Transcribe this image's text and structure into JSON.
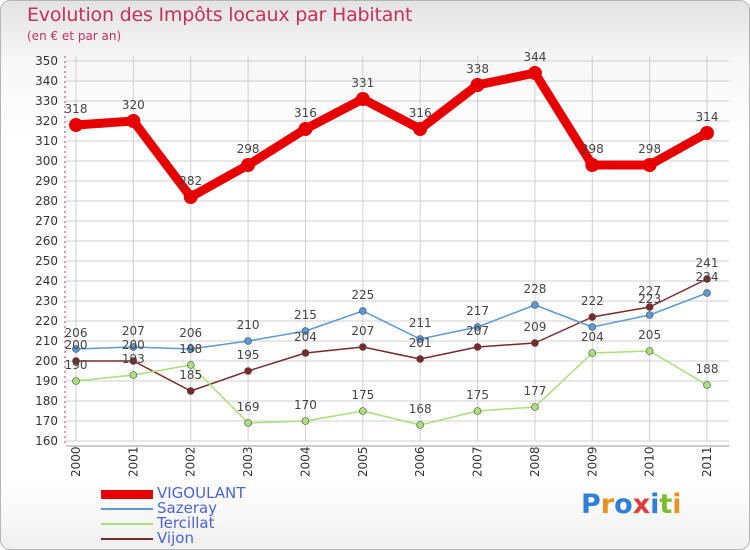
{
  "header": {
    "title": "Evolution des Impôts locaux par Habitant",
    "subtitle": "(en € et par an)"
  },
  "colors": {
    "title": "#c8305a",
    "grid": "#d0d0d0",
    "axis": "#c8305a",
    "legend_text": "#4a64d8"
  },
  "logo": {
    "text": "Proxiti",
    "letter_colors": [
      "#2f7fd6",
      "#e8921f",
      "#2f7fd6",
      "#e23b3b",
      "#2f7fd6",
      "#7cbf2e",
      "#e8921f"
    ]
  },
  "chart_data": {
    "type": "line",
    "title": "Evolution des Impôts locaux par Habitant",
    "subtitle": "(en € et par an)",
    "xlabel": "",
    "ylabel": "",
    "ylim": [
      160,
      350
    ],
    "ytick_step": 10,
    "grid": true,
    "legend_position": "bottom-left",
    "categories": [
      "2000",
      "2001",
      "2002",
      "2003",
      "2004",
      "2005",
      "2006",
      "2007",
      "2008",
      "2009",
      "2010",
      "2011"
    ],
    "series": [
      {
        "name": "VIGOULANT",
        "color": "#e60000",
        "values": [
          318,
          320,
          282,
          298,
          316,
          331,
          316,
          338,
          344,
          298,
          298,
          314
        ]
      },
      {
        "name": "Sazeray",
        "color": "#5b9bd5",
        "values": [
          206,
          207,
          206,
          210,
          215,
          225,
          211,
          217,
          228,
          217,
          223,
          234
        ]
      },
      {
        "name": "Tercillat",
        "color": "#a9e07a",
        "values": [
          190,
          193,
          198,
          169,
          170,
          175,
          168,
          175,
          177,
          204,
          205,
          188
        ]
      },
      {
        "name": "Vijon",
        "color": "#7a2a2a",
        "values": [
          200,
          200,
          185,
          195,
          204,
          207,
          201,
          207,
          209,
          222,
          227,
          241
        ]
      }
    ],
    "data_labels": [
      [
        "318",
        "320",
        "282",
        "298",
        "316",
        "331",
        "316",
        "338",
        "344",
        "298",
        "298",
        "314"
      ],
      [
        "206",
        "207",
        "206",
        "210",
        "215",
        "225",
        "211",
        "217",
        "228",
        "",
        "223",
        "234"
      ],
      [
        "190",
        "193",
        "198",
        "169",
        "170",
        "175",
        "168",
        "175",
        "177",
        "204",
        "205",
        "188"
      ],
      [
        "200",
        "200",
        "185",
        "195",
        "204",
        "207",
        "201",
        "207",
        "209",
        "222",
        "227",
        "241"
      ]
    ]
  }
}
